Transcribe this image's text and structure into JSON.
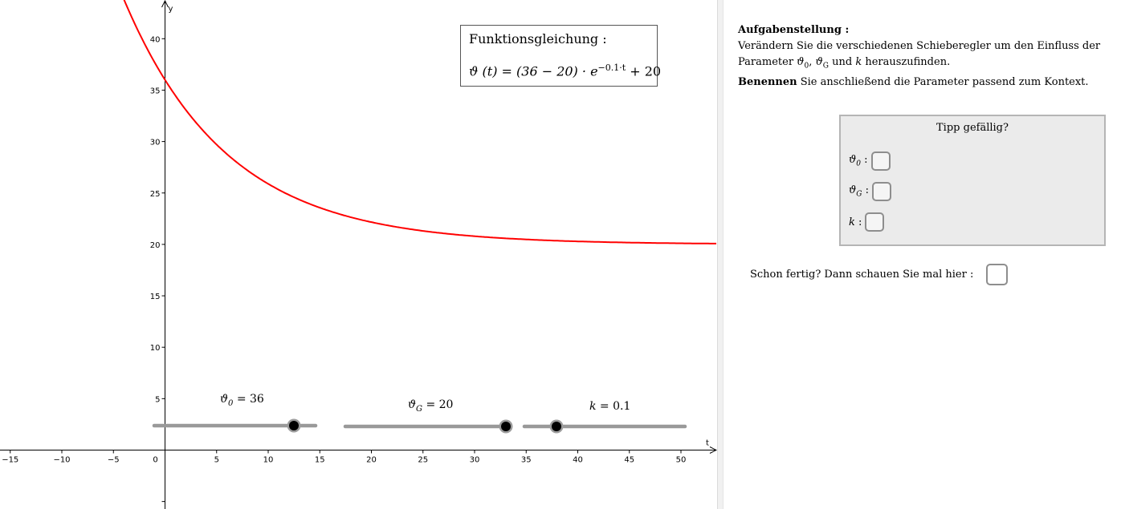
{
  "graph": {
    "x_axis_label": "t",
    "y_axis_label": "y",
    "x_ticks": [
      "−15",
      "−10",
      "−5",
      "0",
      "5",
      "10",
      "15",
      "20",
      "25",
      "30",
      "35",
      "40",
      "45",
      "50"
    ],
    "y_ticks": [
      "5",
      "10",
      "15",
      "20",
      "25",
      "30",
      "35",
      "40"
    ],
    "curve_color": "#ff0000",
    "function": {
      "theta0": 36,
      "thetaG": 20,
      "k": 0.1
    }
  },
  "formula_box": {
    "title": "Funktionsgleichung :",
    "lhs": "ϑ (t) = (36 − 20) · ",
    "base": "e",
    "exponent": "−0.1·t",
    "rhs": " + 20"
  },
  "sliders": [
    {
      "name": "theta0",
      "symbol": "ϑ",
      "subscript": "0",
      "value_text": " = 36",
      "value": 36
    },
    {
      "name": "thetaG",
      "symbol": "ϑ",
      "subscript": "G",
      "value_text": " = 20",
      "value": 20
    },
    {
      "name": "k",
      "symbol": "k",
      "subscript": "",
      "value_text": " = 0.1",
      "value": 0.1
    }
  ],
  "task": {
    "heading": "Aufgabenstellung :",
    "line1": "Verändern Sie die verschiedenen Schieberegler um den Einfluss der",
    "line2_pre": "Parameter ",
    "p1": "ϑ",
    "p1_sub": "0",
    "sep": ", ",
    "p2": "ϑ",
    "p2_sub": "G",
    "line2_mid": " und ",
    "p3": "k",
    "line2_post": " herauszufinden.",
    "bold2": "Benennen",
    "line3": " Sie anschließend die Parameter passend zum Kontext."
  },
  "hint_box": {
    "title": "Tipp gefällig?",
    "items": [
      {
        "symbol": "ϑ",
        "sub": "0",
        "colon": " :"
      },
      {
        "symbol": "ϑ",
        "sub": "G",
        "colon": " :"
      },
      {
        "symbol": "k",
        "sub": "",
        "colon": " :"
      }
    ]
  },
  "done": {
    "label": "Schon fertig? Dann schauen Sie mal hier :"
  }
}
